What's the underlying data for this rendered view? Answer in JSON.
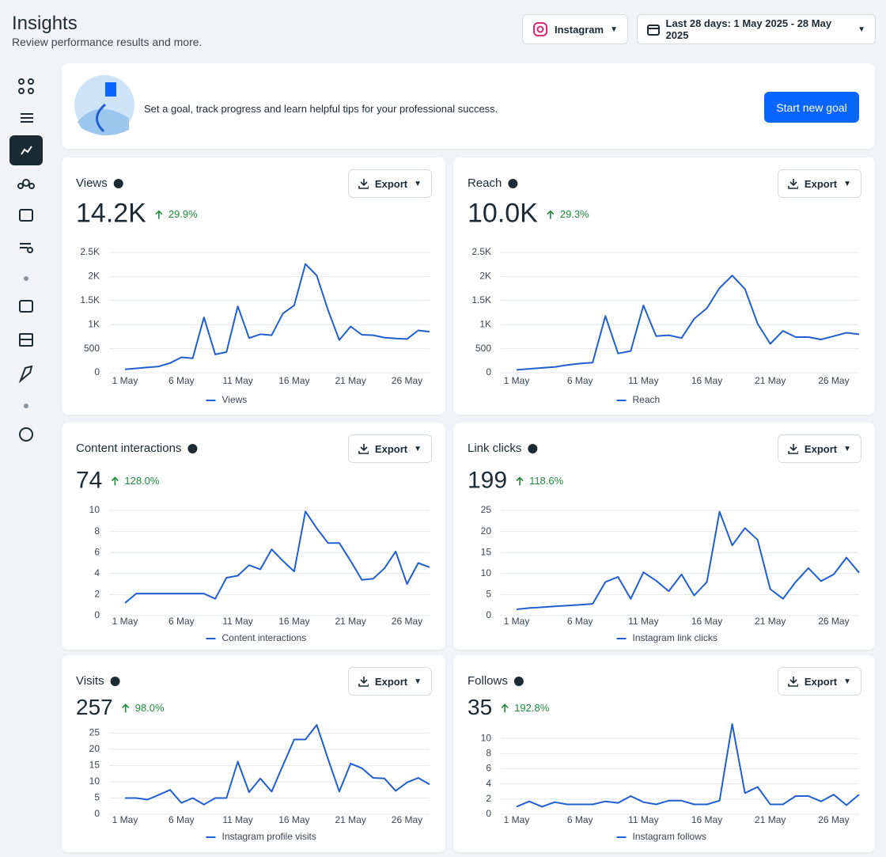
{
  "header": {
    "title": "Insights",
    "subtitle": "Review performance results and more.",
    "platform": "Instagram",
    "date_range": "Last 28 days: 1 May 2025 - 28 May 2025"
  },
  "goal": {
    "text": "Set a goal, track progress and learn helpful tips for your professional success.",
    "button": "Start new goal"
  },
  "chart_data": [
    {
      "type": "line",
      "title": "Views",
      "total": "14.2K",
      "change": "29.9%",
      "export": "Export",
      "categories": [
        "1 May",
        null,
        null,
        null,
        null,
        "6 May",
        null,
        null,
        null,
        null,
        "11 May",
        null,
        null,
        null,
        null,
        "16 May",
        null,
        null,
        null,
        null,
        "21 May",
        null,
        null,
        null,
        null,
        "26 May",
        null,
        null
      ],
      "series": [
        {
          "name": "Views",
          "color": "#1f5fcf",
          "values": [
            70,
            90,
            110,
            130,
            200,
            320,
            300,
            1150,
            380,
            430,
            1380,
            720,
            800,
            780,
            1230,
            1400,
            2260,
            2020,
            1300,
            680,
            960,
            790,
            780,
            730,
            710,
            700,
            880,
            850
          ]
        }
      ],
      "ylim": [
        0,
        2500
      ],
      "yticks": [
        0,
        500,
        {
          "value": 1000,
          "label": "1K"
        },
        {
          "value": 1500,
          "label": "1.5K"
        },
        {
          "value": 2000,
          "label": "2K"
        },
        {
          "value": 2500,
          "label": "2.5K"
        }
      ],
      "grid": true
    },
    {
      "type": "line",
      "title": "Reach",
      "total": "10.0K",
      "change": "29.3%",
      "export": "Export",
      "categories": [
        "1 May",
        null,
        null,
        null,
        null,
        "6 May",
        null,
        null,
        null,
        null,
        "11 May",
        null,
        null,
        null,
        null,
        "16 May",
        null,
        null,
        null,
        null,
        "21 May",
        null,
        null,
        null,
        null,
        "26 May",
        null,
        null
      ],
      "series": [
        {
          "name": "Reach",
          "color": "#1f5fcf",
          "values": [
            60,
            80,
            100,
            120,
            160,
            190,
            210,
            1180,
            400,
            450,
            1400,
            760,
            780,
            720,
            1120,
            1340,
            1760,
            2020,
            1740,
            1020,
            600,
            870,
            740,
            740,
            690,
            760,
            830,
            800
          ]
        }
      ],
      "ylim": [
        0,
        2500
      ],
      "yticks": [
        0,
        500,
        {
          "value": 1000,
          "label": "1K"
        },
        {
          "value": 1500,
          "label": "1.5K"
        },
        {
          "value": 2000,
          "label": "2K"
        },
        {
          "value": 2500,
          "label": "2.5K"
        }
      ],
      "grid": true
    },
    {
      "type": "line",
      "title": "Content interactions",
      "total": "74",
      "change": "128.0%",
      "export": "Export",
      "categories": [
        "1 May",
        null,
        null,
        null,
        null,
        "6 May",
        null,
        null,
        null,
        null,
        "11 May",
        null,
        null,
        null,
        null,
        "16 May",
        null,
        null,
        null,
        null,
        "21 May",
        null,
        null,
        null,
        null,
        "26 May",
        null,
        null
      ],
      "series": [
        {
          "name": "Content interactions",
          "color": "#1f5fcf",
          "values": [
            1.2,
            2.1,
            2.1,
            2.1,
            2.1,
            2.1,
            2.1,
            2.1,
            1.6,
            3.6,
            3.8,
            4.8,
            4.4,
            6.3,
            5.2,
            4.2,
            9.9,
            8.3,
            6.9,
            6.9,
            5.2,
            3.4,
            3.5,
            4.5,
            6.1,
            3.0,
            5.0,
            4.6
          ]
        }
      ],
      "ylim": [
        0,
        10
      ],
      "yticks": [
        0,
        2,
        4,
        6,
        8,
        10
      ],
      "grid": true
    },
    {
      "type": "line",
      "title": "Link clicks",
      "total": "199",
      "change": "118.6%",
      "export": "Export",
      "categories": [
        "1 May",
        null,
        null,
        null,
        null,
        "6 May",
        null,
        null,
        null,
        null,
        "11 May",
        null,
        null,
        null,
        null,
        "16 May",
        null,
        null,
        null,
        null,
        "21 May",
        null,
        null,
        null,
        null,
        "26 May",
        null,
        null
      ],
      "series": [
        {
          "name": "Instagram link clicks",
          "color": "#1f5fcf",
          "values": [
            1.5,
            1.8,
            2,
            2.2,
            2.4,
            2.6,
            2.8,
            8,
            9.2,
            4,
            10.3,
            8.3,
            5.8,
            9.8,
            4.8,
            8,
            24.7,
            16.7,
            20.8,
            18,
            6.3,
            4,
            8,
            11.3,
            8.2,
            9.8,
            13.8,
            10.2
          ]
        }
      ],
      "ylim": [
        0,
        25
      ],
      "yticks": [
        0,
        5,
        10,
        15,
        20,
        25
      ],
      "grid": true
    },
    {
      "type": "line",
      "title": "Visits",
      "total": "257",
      "change": "98.0%",
      "export": "Export",
      "categories": [
        "1 May",
        null,
        null,
        null,
        null,
        "6 May",
        null,
        null,
        null,
        null,
        "11 May",
        null,
        null,
        null,
        null,
        "16 May",
        null,
        null,
        null,
        null,
        "21 May",
        null,
        null,
        null,
        null,
        "26 May",
        null,
        null
      ],
      "series": [
        {
          "name": "Instagram profile visits",
          "color": "#1f5fcf",
          "values": [
            5,
            5,
            4.5,
            6,
            7.5,
            3.5,
            5,
            3,
            5,
            5,
            16.2,
            6.8,
            11,
            7,
            15,
            23,
            23,
            27.5,
            17,
            7,
            15.6,
            14.2,
            11.2,
            11,
            7.2,
            9.8,
            11.2,
            9.2
          ]
        }
      ],
      "ylim": [
        0,
        28
      ],
      "yticks": [
        0,
        5,
        10,
        15,
        20,
        25
      ],
      "grid": true
    },
    {
      "type": "line",
      "title": "Follows",
      "total": "35",
      "change": "192.8%",
      "export": "Export",
      "categories": [
        "1 May",
        null,
        null,
        null,
        null,
        "6 May",
        null,
        null,
        null,
        null,
        "11 May",
        null,
        null,
        null,
        null,
        "16 May",
        null,
        null,
        null,
        null,
        "21 May",
        null,
        null,
        null,
        null,
        "26 May",
        null,
        null
      ],
      "series": [
        {
          "name": "Instagram follows",
          "color": "#1f5fcf",
          "values": [
            1,
            1.7,
            1,
            1.6,
            1.3,
            1.3,
            1.3,
            1.7,
            1.5,
            2.4,
            1.6,
            1.3,
            1.8,
            1.8,
            1.3,
            1.3,
            1.8,
            11.9,
            2.8,
            3.6,
            1.3,
            1.3,
            2.4,
            2.4,
            1.7,
            2.6,
            1.2,
            2.6
          ]
        }
      ],
      "ylim": [
        0,
        12
      ],
      "yticks": [
        0,
        2,
        4,
        6,
        8,
        10
      ],
      "grid": true
    }
  ]
}
